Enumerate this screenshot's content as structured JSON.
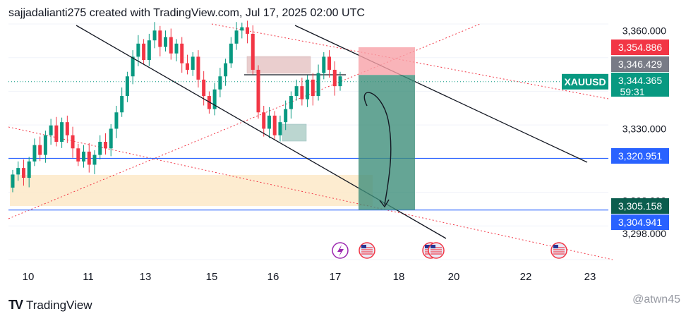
{
  "header": {
    "caption": "sajjadalianti275 created with TradingView.com, Jul 17, 2025 02:00 UTC"
  },
  "footer": {
    "brand": "TradingView",
    "watermark": "@atwn45"
  },
  "colors": {
    "up": "#089981",
    "down": "#f23645",
    "blue": "#2962ff",
    "zone": "#fde9c8"
  },
  "chart_data": {
    "type": "candlestick",
    "symbol": "XAUUSD",
    "timer": "59:31",
    "x_ticks": [
      "10",
      "11",
      "13",
      "15",
      "16",
      "17",
      "18",
      "20",
      "22",
      "23"
    ],
    "y_ticks": [
      "3,360.000",
      "3,330.000",
      "3,308.000",
      "3,298.000"
    ],
    "ylim": [
      3290,
      3362
    ],
    "price_labels": [
      {
        "value": 3354.886,
        "text": "3,354.886",
        "color": "#f23645"
      },
      {
        "value": 3346.429,
        "text": "3,346.429",
        "color": "#787b86"
      },
      {
        "value": 3344.365,
        "text": "3,344.365",
        "color": "#089981"
      },
      {
        "value": 3320.951,
        "text": "3,320.951",
        "color": "#2962ff"
      },
      {
        "value": 3305.158,
        "text": "3,305.158",
        "color": "#0b5d4e"
      },
      {
        "value": 3304.941,
        "text": "3,304.941",
        "color": "#2962ff"
      }
    ],
    "horizontal_lines": [
      3320.951,
      3305.158
    ],
    "trade": {
      "entry": 3346.429,
      "stop": 3354.886,
      "target": 3305.158
    },
    "candle_closes": [
      3316,
      3318,
      3315,
      3320,
      3325,
      3322,
      3328,
      3331,
      3326,
      3332,
      3328,
      3324,
      3320,
      3323,
      3319,
      3322,
      3326,
      3324,
      3330,
      3335,
      3340,
      3346,
      3352,
      3356,
      3351,
      3357,
      3360,
      3355,
      3358,
      3353,
      3356,
      3350,
      3348,
      3352,
      3345,
      3340,
      3336,
      3342,
      3346,
      3350,
      3356,
      3360,
      3361,
      3359,
      3348,
      3335,
      3330,
      3334,
      3328,
      3332,
      3336,
      3340,
      3343,
      3339,
      3345,
      3340,
      3347,
      3352,
      3348,
      3343,
      3346
    ]
  }
}
